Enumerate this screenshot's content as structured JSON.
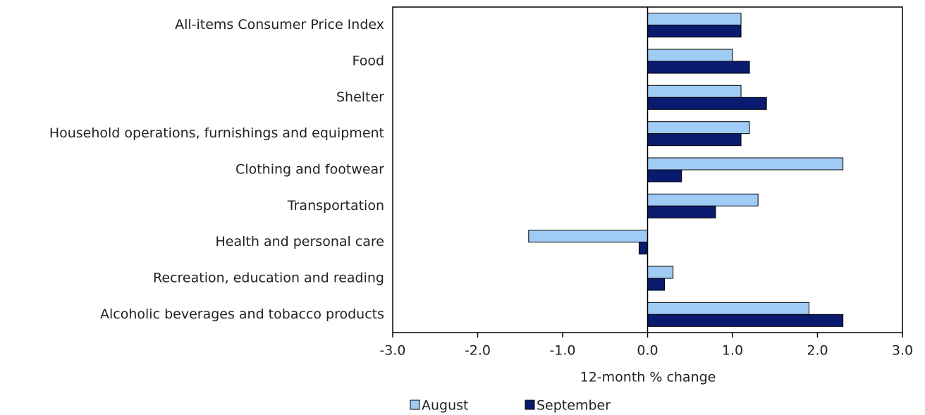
{
  "chart_data": {
    "type": "bar",
    "orientation": "horizontal",
    "xlabel": "12-month % change",
    "categories": [
      "All-items Consumer Price Index",
      "Food",
      "Shelter",
      "Household operations, furnishings and equipment",
      "Clothing and footwear",
      "Transportation",
      "Health and personal care",
      "Recreation, education and reading",
      "Alcoholic beverages and tobacco products"
    ],
    "series": [
      {
        "name": "August",
        "color": "#9fcbf5",
        "values": [
          1.1,
          1.0,
          1.1,
          1.2,
          2.3,
          1.3,
          -1.4,
          0.3,
          1.9
        ]
      },
      {
        "name": "September",
        "color": "#0a1a6e",
        "values": [
          1.1,
          1.2,
          1.4,
          1.1,
          0.4,
          0.8,
          -0.1,
          0.2,
          2.3
        ]
      }
    ],
    "xlim": [
      -3,
      3
    ],
    "xticks": [
      {
        "value": -3,
        "label": "-3.0"
      },
      {
        "value": -2,
        "label": "-2.0"
      },
      {
        "value": -1,
        "label": "-1.0"
      },
      {
        "value": 0,
        "label": "0.0"
      },
      {
        "value": 1,
        "label": "1.0"
      },
      {
        "value": 2,
        "label": "2.0"
      },
      {
        "value": 3,
        "label": "3.0"
      }
    ],
    "legend": "bottom"
  }
}
